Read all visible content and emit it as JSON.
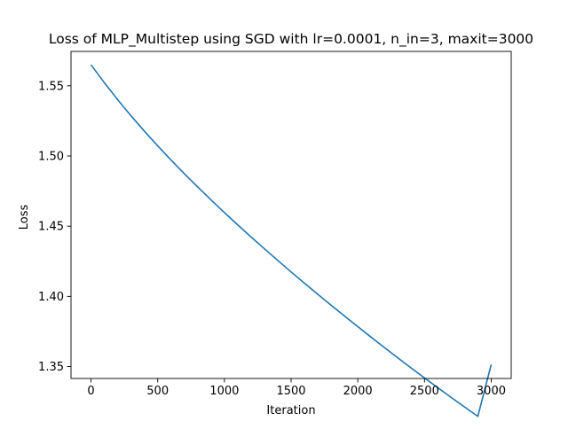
{
  "chart_data": {
    "type": "line",
    "title": "Loss of MLP_Multistep using SGD with lr=0.0001, n_in=3, maxit=3000",
    "xlabel": "Iteration",
    "ylabel": "Loss",
    "xlim": [
      -150,
      3150
    ],
    "ylim": [
      1.3415,
      1.5745
    ],
    "x_ticks": [
      0,
      500,
      1000,
      1500,
      2000,
      2500,
      3000
    ],
    "x_tick_labels": [
      "0",
      "500",
      "1000",
      "1500",
      "2000",
      "2500",
      "3000"
    ],
    "y_ticks": [
      1.35,
      1.4,
      1.45,
      1.5,
      1.55
    ],
    "y_tick_labels": [
      "1.35",
      "1.40",
      "1.45",
      "1.50",
      "1.55"
    ],
    "grid": false,
    "legend": "none",
    "series_color": "#1f77b4",
    "series": [
      {
        "x": [
          0,
          100,
          200,
          300,
          400,
          500,
          600,
          700,
          800,
          900,
          1000,
          1100,
          1200,
          1300,
          1400,
          1500,
          1600,
          1700,
          1800,
          1900,
          2000,
          2100,
          2200,
          2300,
          2400,
          2500,
          2600,
          2700,
          2800,
          2900,
          3000
        ],
        "values": [
          1.565,
          1.5522,
          1.5401,
          1.5286,
          1.5177,
          1.5072,
          1.4971,
          1.4873,
          1.4779,
          1.4687,
          1.4597,
          1.4509,
          1.4423,
          1.4339,
          1.4256,
          1.4174,
          1.4094,
          1.4015,
          1.3937,
          1.386,
          1.3784,
          1.3709,
          1.3635,
          1.3562,
          1.349,
          1.3419,
          1.3349,
          1.328,
          1.3212,
          1.3145,
          1.3514
        ]
      }
    ]
  }
}
